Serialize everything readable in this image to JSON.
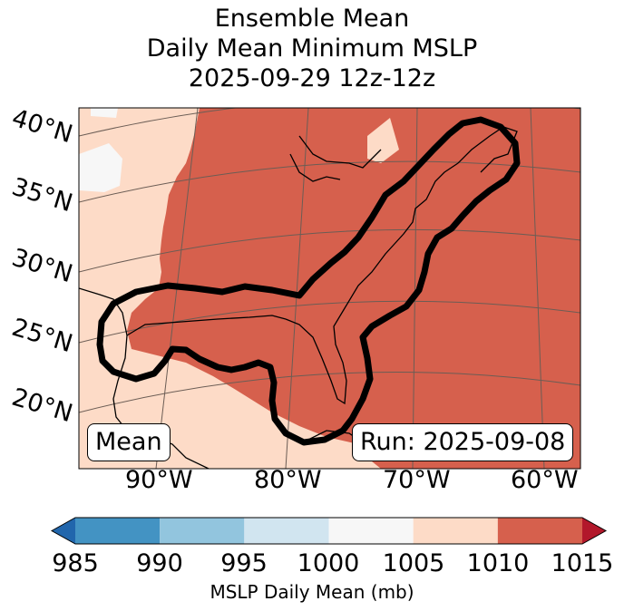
{
  "title": {
    "line1": "Ensemble Mean",
    "line2": "Daily Mean Minimum MSLP",
    "line3": "2025-09-29 12z-12z"
  },
  "map": {
    "lat_labels": [
      "40°N",
      "35°N",
      "30°N",
      "25°N",
      "20°N"
    ],
    "lon_labels": [
      "90°W",
      "80°W",
      "70°W",
      "60°W"
    ],
    "mean_label": "Mean",
    "run_label": "Run: 2025-09-08",
    "colors": {
      "c1010_1015": "#d6604d",
      "c1005_1010": "#fddbc7",
      "c1000_1005": "#f7f7f7",
      "contour": "#000000",
      "coast": "#000000",
      "grid": "#6b5d55"
    }
  },
  "colorbar": {
    "label": "MSLP Daily Mean (mb)",
    "ticks": [
      "985",
      "990",
      "995",
      "1000",
      "1005",
      "1010",
      "1015"
    ],
    "bins": [
      {
        "from": 985,
        "to": 990,
        "color": "#4393c3"
      },
      {
        "from": 990,
        "to": 995,
        "color": "#92c5de"
      },
      {
        "from": 995,
        "to": 1000,
        "color": "#d1e5f0"
      },
      {
        "from": 1000,
        "to": 1005,
        "color": "#f7f7f7"
      },
      {
        "from": 1005,
        "to": 1010,
        "color": "#fddbc7"
      },
      {
        "from": 1010,
        "to": 1015,
        "color": "#d6604d"
      }
    ],
    "extend_low_color": "#2166ac",
    "extend_high_color": "#b2182b"
  }
}
